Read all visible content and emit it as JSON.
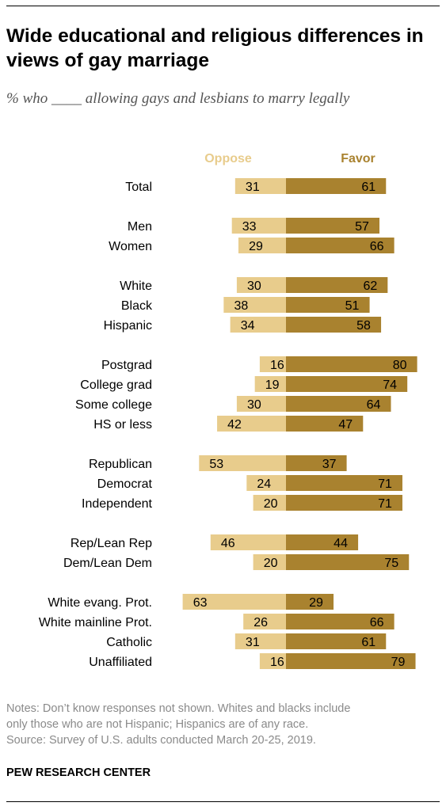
{
  "header": {
    "title": "Wide educational and religious differences in views of gay marriage",
    "subtitle": "% who ____ allowing gays and lesbians to marry legally"
  },
  "chart_data": {
    "type": "bar",
    "orientation": "horizontal-diverging",
    "series": [
      {
        "name": "Oppose",
        "color": "#e8cc8c",
        "values": [
          31,
          33,
          29,
          30,
          38,
          34,
          16,
          19,
          30,
          42,
          53,
          24,
          20,
          46,
          20,
          63,
          26,
          31,
          16
        ]
      },
      {
        "name": "Favor",
        "color": "#a9822f",
        "values": [
          61,
          57,
          66,
          62,
          51,
          58,
          80,
          74,
          64,
          47,
          37,
          71,
          71,
          44,
          75,
          29,
          66,
          61,
          79
        ]
      }
    ],
    "categories": [
      "Total",
      "Men",
      "Women",
      "White",
      "Black",
      "Hispanic",
      "Postgrad",
      "College grad",
      "Some college",
      "HS or less",
      "Republican",
      "Democrat",
      "Independent",
      "Rep/Lean Rep",
      "Dem/Lean Dem",
      "White evang. Prot.",
      "White mainline Prot.",
      "Catholic",
      "Unaffiliated"
    ],
    "groups": [
      [
        "Total"
      ],
      [
        "Men",
        "Women"
      ],
      [
        "White",
        "Black",
        "Hispanic"
      ],
      [
        "Postgrad",
        "College grad",
        "Some college",
        "HS or less"
      ],
      [
        "Republican",
        "Democrat",
        "Independent"
      ],
      [
        "Rep/Lean Rep",
        "Dem/Lean Dem"
      ],
      [
        "White evang. Prot.",
        "White mainline Prot.",
        "Catholic",
        "Unaffiliated"
      ]
    ],
    "legend_position": "top",
    "grid": false,
    "data_labels": true
  },
  "notes": [
    "Notes: Don’t know responses not shown. Whites and blacks include",
    "only those who are not Hispanic; Hispanics are of any race.",
    "Source: Survey of U.S. adults conducted March 20-25, 2019."
  ],
  "brand": "PEW RESEARCH CENTER"
}
